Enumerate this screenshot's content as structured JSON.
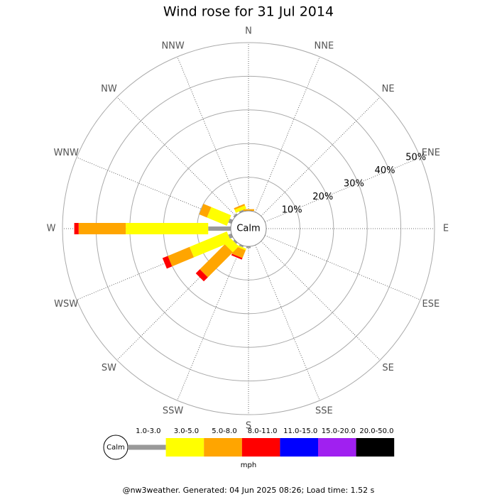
{
  "chart_data": {
    "type": "windrose",
    "title": "Wind rose for 31 Jul 2014",
    "categories": [
      "N",
      "NNE",
      "NE",
      "ENE",
      "E",
      "ESE",
      "SE",
      "SSE",
      "S",
      "SSW",
      "SW",
      "WSW",
      "W",
      "WNW",
      "NW",
      "NNW"
    ],
    "calm_label": "Calm",
    "rlim": [
      0,
      50
    ],
    "rticks": [
      {
        "value": 10,
        "label": "10%"
      },
      {
        "value": 20,
        "label": "20%"
      },
      {
        "value": 30,
        "label": "30%"
      },
      {
        "value": 40,
        "label": "40%"
      },
      {
        "value": 50,
        "label": "50%"
      }
    ],
    "series": [
      {
        "name": "1.0-3.0",
        "color": "#999999",
        "values": [
          0,
          0,
          0,
          0,
          0,
          0,
          0,
          0,
          0.5,
          0.5,
          0.5,
          1,
          6.7,
          1,
          0.5,
          0.5
        ]
      },
      {
        "name": "3.0-5.0",
        "color": "#ffff00",
        "values": [
          0,
          0,
          0,
          0,
          0,
          0,
          0,
          0,
          0,
          0.5,
          2.5,
          12,
          24.5,
          6.4,
          0,
          1
        ]
      },
      {
        "name": "5.0-8.0",
        "color": "#ffa500",
        "values": [
          0.5,
          0,
          0,
          0,
          0,
          0,
          0,
          0,
          0,
          2.5,
          10.5,
          7,
          14,
          2.5,
          0,
          0.5
        ]
      },
      {
        "name": "8.0-11.0",
        "color": "#ff0000",
        "values": [
          0,
          0,
          0,
          0,
          0,
          0,
          0,
          0,
          0,
          0.5,
          1.7,
          1.7,
          1.3,
          0,
          0,
          0
        ]
      },
      {
        "name": "11.0-15.0",
        "color": "#0000ff",
        "values": [
          0,
          0,
          0,
          0,
          0,
          0,
          0,
          0,
          0,
          0,
          0,
          0,
          0,
          0,
          0,
          0
        ]
      },
      {
        "name": "15.0-20.0",
        "color": "#a020f0",
        "values": [
          0,
          0,
          0,
          0,
          0,
          0,
          0,
          0,
          0,
          0,
          0,
          0,
          0,
          0,
          0,
          0
        ]
      },
      {
        "name": "20.0-50.0",
        "color": "#000000",
        "values": [
          0,
          0,
          0,
          0,
          0,
          0,
          0,
          0,
          0,
          0,
          0,
          0,
          0,
          0,
          0,
          0
        ]
      }
    ],
    "units": "mph",
    "footer": "@nw3weather. Generated: 04 Jun 2025 08:26; Load time: 1.52 s"
  }
}
